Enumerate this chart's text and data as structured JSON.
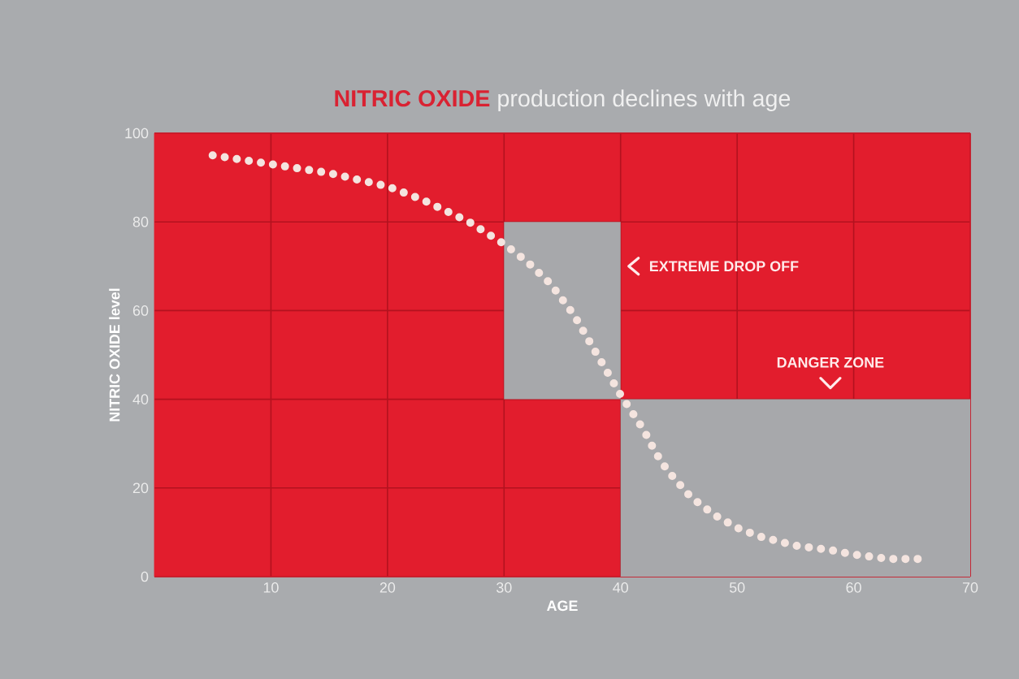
{
  "chart_data": {
    "type": "line",
    "title": "**NITRIC OXIDE** production declines with age",
    "xlabel": "AGE",
    "ylabel": "NITRIC OXIDE level",
    "x": [
      5,
      10,
      15,
      20,
      23,
      27,
      30,
      32,
      34,
      36,
      38,
      40,
      41,
      42,
      43,
      44,
      46,
      48,
      50,
      52,
      55,
      58,
      60,
      63,
      66
    ],
    "series": [
      {
        "color": "#f4e4df",
        "values": [
          95,
          93,
          91,
          88,
          85,
          80,
          75,
          71,
          66,
          59,
          50,
          41,
          37,
          33,
          28,
          24,
          18,
          14,
          11,
          9,
          7,
          6,
          5,
          4,
          4
        ]
      }
    ],
    "xlim": [
      0,
      70
    ],
    "ylim": [
      0,
      100
    ],
    "xticks": [
      10,
      20,
      30,
      40,
      50,
      60,
      70
    ],
    "yticks": [
      0,
      20,
      40,
      60,
      80,
      100
    ],
    "grid": true,
    "line_style": "dotted",
    "bands": [
      {
        "axis": "x",
        "from": 30,
        "to": 40,
        "color": "#a7a8ab",
        "label": "EXTREME DROP OFF"
      },
      {
        "axis": "x",
        "from": 40,
        "to": 70,
        "color": "#a7a8ab",
        "label": "DANGER ZONE"
      }
    ]
  }
}
